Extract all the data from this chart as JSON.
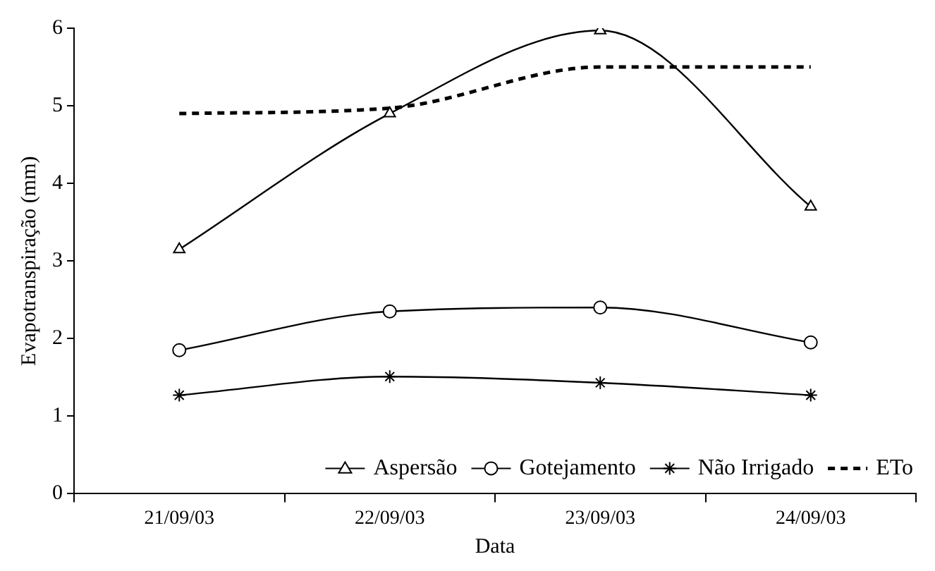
{
  "chart_data": {
    "type": "line",
    "xlabel": "Data",
    "ylabel": "Evapotranspiração (mm)",
    "categories": [
      "21/09/03",
      "22/09/03",
      "23/09/03",
      "24/09/03"
    ],
    "series": [
      {
        "name": "Aspersão",
        "color": "#000000",
        "marker": "triangle",
        "line_style": "solid",
        "values": [
          3.15,
          4.9,
          5.97,
          3.7
        ]
      },
      {
        "name": "Gotejamento",
        "color": "#000000",
        "marker": "circle",
        "line_style": "solid",
        "values": [
          1.85,
          2.35,
          2.4,
          1.95
        ]
      },
      {
        "name": "Não Irrigado",
        "color": "#000000",
        "marker": "cross",
        "line_style": "solid",
        "values": [
          1.27,
          1.51,
          1.43,
          1.27
        ]
      },
      {
        "name": "ETo",
        "color": "#000000",
        "marker": "none",
        "line_style": "dashed",
        "values": [
          4.9,
          4.97,
          5.5,
          5.5
        ]
      }
    ],
    "ylim": [
      0,
      6
    ],
    "yticks": [
      0,
      1,
      2,
      3,
      4,
      5,
      6
    ],
    "grid": false,
    "legend": "bottom right"
  }
}
